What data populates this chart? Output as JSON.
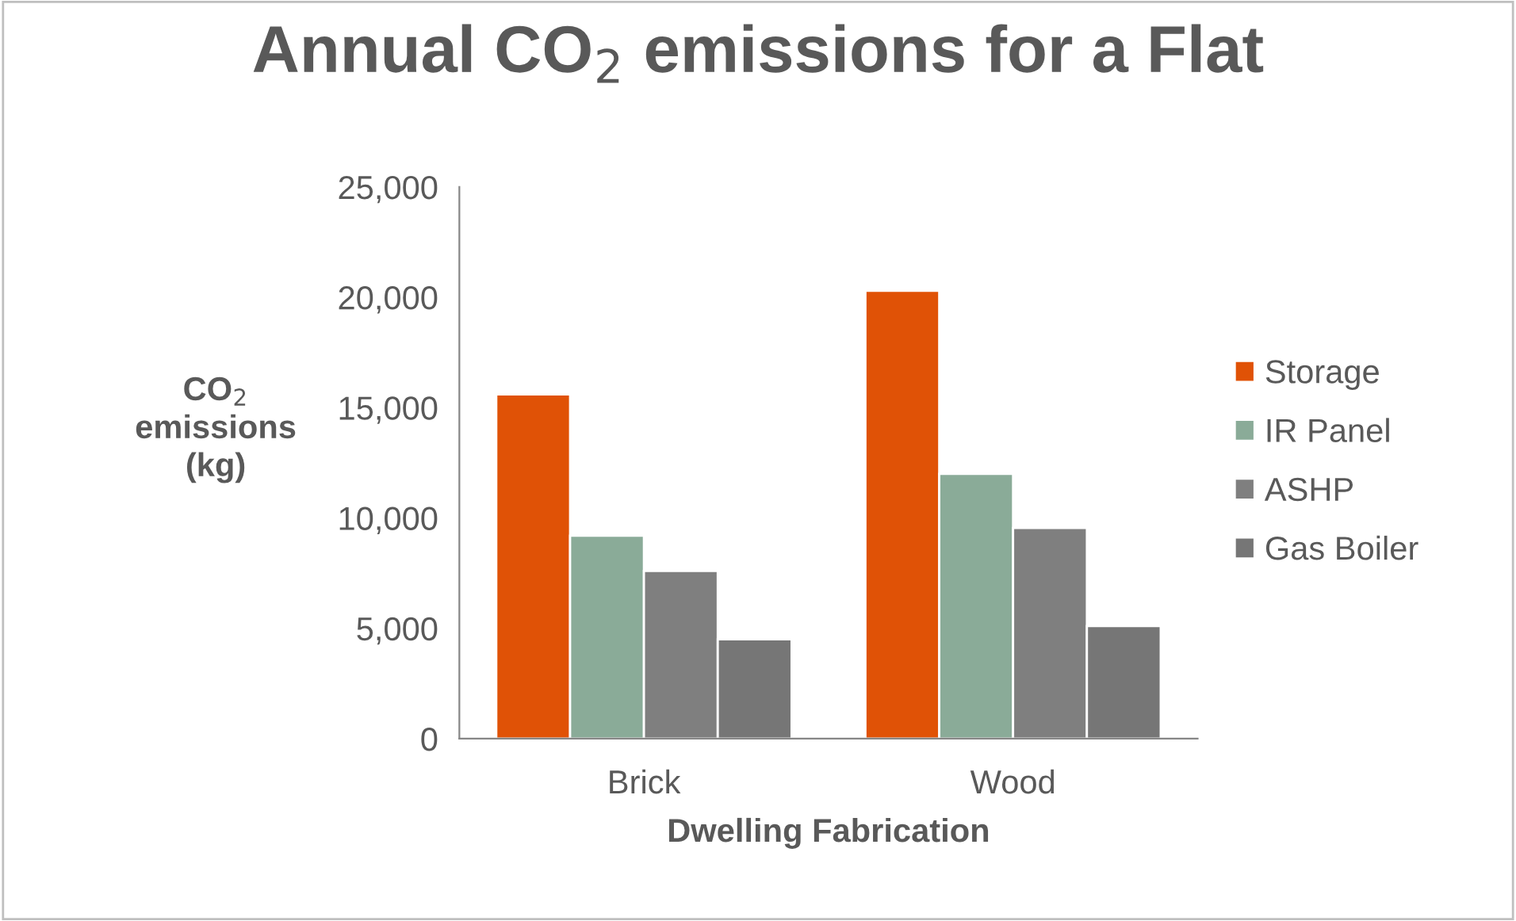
{
  "chart_data": {
    "type": "bar",
    "title": "Annual CO$_{2}$ emissions for a Flat",
    "xlabel": "Dwelling Fabrication",
    "ylabel": "CO$_{2}$\nemissions\n(kg)",
    "categories": [
      "Brick",
      "Wood"
    ],
    "series": [
      {
        "name": "Storage",
        "color": "#e05206",
        "values": [
          15600,
          20300
        ]
      },
      {
        "name": "IR Panel",
        "color": "#8aab98",
        "values": [
          9200,
          12000
        ]
      },
      {
        "name": "ASHP",
        "color": "#7f7f7f",
        "values": [
          7600,
          9550
        ]
      },
      {
        "name": "Gas Boiler",
        "color": "#767676",
        "values": [
          4500,
          5100
        ]
      }
    ],
    "ylim": [
      0,
      25000
    ],
    "yticks": [
      {
        "value": 0,
        "label": "0"
      },
      {
        "value": 5000,
        "label": "5,000"
      },
      {
        "value": 10000,
        "label": "10,000"
      },
      {
        "value": 15000,
        "label": "15,000"
      },
      {
        "value": 20000,
        "label": "20,000"
      },
      {
        "value": 25000,
        "label": "25,000"
      }
    ],
    "grid": false,
    "legend": "right"
  }
}
